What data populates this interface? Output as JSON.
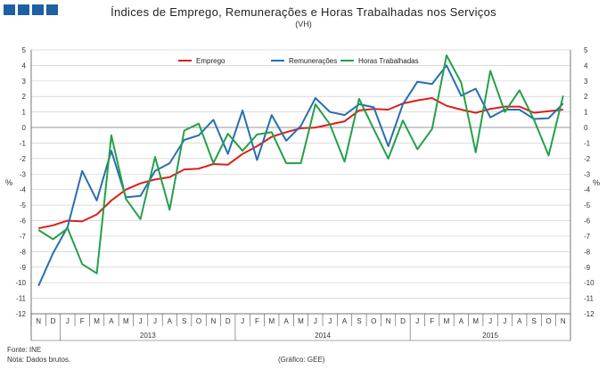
{
  "header": {
    "title": "Índices de Emprego, Remunerações e Horas Trabalhadas nos Serviços",
    "subtitle": "(VH)"
  },
  "footer": {
    "source": "Fonte: INE",
    "note": "Nota: Dados brutos.",
    "credit": "(Gráfico: GEE)"
  },
  "colors": {
    "emprego": "#d9201c",
    "remuneracoes": "#2a6eb0",
    "horas": "#24a04a",
    "grid": "#d0d0d0",
    "zero": "#999999",
    "logo": "#1f5fa3"
  },
  "chart_data": {
    "type": "line",
    "title": "Índices de Emprego, Remunerações e Horas Trabalhadas nos Serviços",
    "subtitle": "(VH)",
    "ylabel_left": "%",
    "ylabel_right": "%",
    "ylim": [
      -12,
      5
    ],
    "yticks": [
      5,
      4,
      3,
      2,
      1,
      0,
      -1,
      -2,
      -3,
      -4,
      -5,
      -6,
      -7,
      -8,
      -9,
      -10,
      -11,
      -12
    ],
    "grid": true,
    "legend_position": "top-center",
    "categories": [
      "N",
      "D",
      "J",
      "F",
      "M",
      "A",
      "M",
      "J",
      "J",
      "A",
      "S",
      "O",
      "N",
      "D",
      "J",
      "F",
      "M",
      "A",
      "M",
      "J",
      "J",
      "A",
      "S",
      "O",
      "N",
      "D",
      "J",
      "F",
      "M",
      "A",
      "M",
      "J",
      "J",
      "A",
      "S",
      "O",
      "N"
    ],
    "years": [
      {
        "label": "2013",
        "start": 2,
        "end": 13
      },
      {
        "label": "2014",
        "start": 14,
        "end": 25
      },
      {
        "label": "2015",
        "start": 26,
        "end": 36
      }
    ],
    "series": [
      {
        "name": "Emprego",
        "key": "emprego",
        "values": [
          -6.5,
          -6.3,
          -6.0,
          -6.05,
          -5.6,
          -4.7,
          -4.0,
          -3.6,
          -3.35,
          -3.2,
          -2.7,
          -2.65,
          -2.35,
          -2.4,
          -1.7,
          -1.2,
          -0.6,
          -0.3,
          -0.05,
          0.0,
          0.2,
          0.4,
          1.1,
          1.2,
          1.15,
          1.55,
          1.75,
          1.9,
          1.4,
          1.15,
          0.95,
          1.2,
          1.35,
          1.35,
          0.95,
          1.05,
          1.15
        ]
      },
      {
        "name": "Remunerações",
        "key": "remuneracoes",
        "values": [
          -10.2,
          -8.1,
          -6.4,
          -2.8,
          -4.7,
          -1.5,
          -4.5,
          -4.4,
          -2.8,
          -2.3,
          -0.8,
          -0.5,
          0.5,
          -1.7,
          1.1,
          -2.1,
          0.8,
          -0.85,
          0.1,
          1.9,
          1.0,
          0.8,
          1.5,
          1.3,
          -1.2,
          1.5,
          2.95,
          2.8,
          4.0,
          2.05,
          2.5,
          0.65,
          1.15,
          1.15,
          0.55,
          0.6,
          1.55
        ]
      },
      {
        "name": "Horas Trabalhadas",
        "key": "horas",
        "values": [
          -6.6,
          -7.2,
          -6.5,
          -8.8,
          -9.4,
          -0.5,
          -4.6,
          -5.9,
          -1.9,
          -5.3,
          -0.2,
          0.25,
          -2.3,
          -0.4,
          -1.5,
          -0.45,
          -0.3,
          -2.3,
          -2.3,
          1.5,
          0.2,
          -2.2,
          1.85,
          -0.1,
          -2.0,
          0.45,
          -1.4,
          -0.1,
          4.65,
          2.9,
          -1.6,
          3.65,
          1.0,
          2.4,
          0.5,
          -1.8,
          2.05
        ]
      }
    ]
  }
}
